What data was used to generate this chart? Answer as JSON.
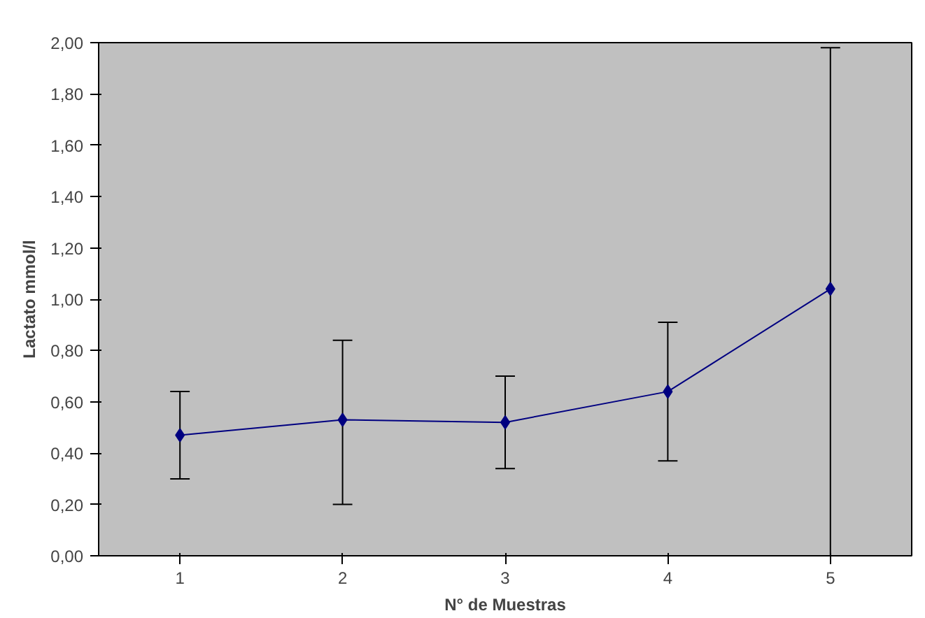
{
  "chart_data": {
    "type": "line",
    "xlabel": "N° de Muestras",
    "ylabel": "Lactato mmol/l",
    "categories": [
      "1",
      "2",
      "3",
      "4",
      "5"
    ],
    "series": [
      {
        "color": "#000080",
        "values": [
          0.47,
          0.53,
          0.52,
          0.64,
          1.04
        ],
        "errors": [
          [
            0.3,
            0.64
          ],
          [
            0.2,
            0.84
          ],
          [
            0.34,
            0.7
          ],
          [
            0.37,
            0.91
          ],
          [
            0.0,
            1.98
          ]
        ]
      }
    ],
    "ylim": [
      0,
      2
    ],
    "yticks": [
      {
        "value": 0,
        "label": "0,00"
      },
      {
        "value": 0.2,
        "label": "0,20"
      },
      {
        "value": 0.4,
        "label": "0,40"
      },
      {
        "value": 0.6,
        "label": "0,60"
      },
      {
        "value": 0.8,
        "label": "0,80"
      },
      {
        "value": 1.0,
        "label": "1,00"
      },
      {
        "value": 1.2,
        "label": "1,20"
      },
      {
        "value": 1.4,
        "label": "1,40"
      },
      {
        "value": 1.6,
        "label": "1,60"
      },
      {
        "value": 1.8,
        "label": "1,80"
      },
      {
        "value": 2.0,
        "label": "2,00"
      }
    ],
    "grid": false,
    "marker": "diamond",
    "line_style": "solid"
  }
}
